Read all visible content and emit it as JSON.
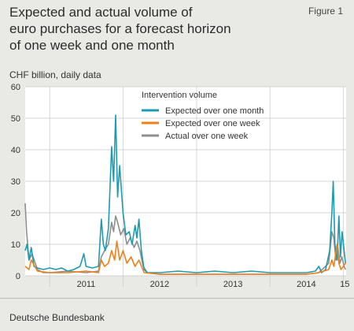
{
  "header": {
    "title_lines": [
      "Expected and actual volume of",
      "euro purchases for a forecast horizon",
      "of one week and one month"
    ],
    "figure_label": "Figure 1",
    "subtitle": "CHF billion, daily data"
  },
  "footer": {
    "source": "Deutsche Bundesbank"
  },
  "colors": {
    "expected_month": "#1f9bb0",
    "expected_week": "#f07f1a",
    "actual_week": "#8f8f8f",
    "panel_bg": "#ffffff",
    "page_bg": "#e9e9e5"
  },
  "chart_data": {
    "type": "line",
    "title": "Expected and actual volume of euro purchases for a forecast horizon of one week and one month",
    "ylabel": "CHF billion, daily data",
    "ylim": [
      0,
      60
    ],
    "yticks": [
      0,
      10,
      20,
      30,
      40,
      50,
      60
    ],
    "xlim": [
      "2010-09-01",
      "2015-01-15"
    ],
    "year_boundaries": [
      "2011-01-01",
      "2012-01-01",
      "2013-01-01",
      "2014-01-01",
      "2015-01-01"
    ],
    "xtick_labels": [
      {
        "label": "2011",
        "at": "2011-07-01"
      },
      {
        "label": "2012",
        "at": "2012-07-01"
      },
      {
        "label": "2013",
        "at": "2013-07-01"
      },
      {
        "label": "2014",
        "at": "2014-07-01"
      },
      {
        "label": "15",
        "at": "2015-01-08"
      }
    ],
    "grid": true,
    "legend_title": "Intervention volume",
    "legend_position": "top-center",
    "series": [
      {
        "name": "Expected over one month",
        "color": "#1f9bb0",
        "points": [
          [
            "2010-09-01",
            8
          ],
          [
            "2010-09-10",
            10
          ],
          [
            "2010-09-20",
            5
          ],
          [
            "2010-10-01",
            9
          ],
          [
            "2010-10-15",
            3
          ],
          [
            "2010-11-01",
            2.5
          ],
          [
            "2010-12-01",
            2
          ],
          [
            "2011-01-01",
            2.5
          ],
          [
            "2011-02-01",
            2
          ],
          [
            "2011-03-01",
            2.5
          ],
          [
            "2011-04-01",
            1.5
          ],
          [
            "2011-05-01",
            2
          ],
          [
            "2011-06-01",
            3
          ],
          [
            "2011-06-20",
            7
          ],
          [
            "2011-07-01",
            3
          ],
          [
            "2011-08-01",
            2.5
          ],
          [
            "2011-09-01",
            3
          ],
          [
            "2011-09-15",
            18
          ],
          [
            "2011-09-25",
            10
          ],
          [
            "2011-10-05",
            8
          ],
          [
            "2011-10-20",
            15
          ],
          [
            "2011-11-05",
            41
          ],
          [
            "2011-11-15",
            30
          ],
          [
            "2011-11-25",
            51
          ],
          [
            "2011-12-05",
            25
          ],
          [
            "2011-12-15",
            35
          ],
          [
            "2012-01-01",
            20
          ],
          [
            "2012-01-15",
            13
          ],
          [
            "2012-02-01",
            14
          ],
          [
            "2012-02-15",
            10
          ],
          [
            "2012-03-01",
            16
          ],
          [
            "2012-03-10",
            12
          ],
          [
            "2012-03-20",
            18
          ],
          [
            "2012-04-01",
            8
          ],
          [
            "2012-04-15",
            2
          ],
          [
            "2012-05-01",
            1
          ],
          [
            "2012-07-01",
            1
          ],
          [
            "2012-10-01",
            1.5
          ],
          [
            "2013-01-01",
            1
          ],
          [
            "2013-04-01",
            1.5
          ],
          [
            "2013-07-01",
            1
          ],
          [
            "2013-10-01",
            1.5
          ],
          [
            "2014-01-01",
            1
          ],
          [
            "2014-04-01",
            1
          ],
          [
            "2014-07-01",
            1
          ],
          [
            "2014-08-15",
            1.5
          ],
          [
            "2014-09-01",
            3
          ],
          [
            "2014-09-15",
            1
          ],
          [
            "2014-10-05",
            2
          ],
          [
            "2014-10-25",
            8
          ],
          [
            "2014-11-05",
            20
          ],
          [
            "2014-11-12",
            30
          ],
          [
            "2014-11-20",
            10
          ],
          [
            "2014-12-01",
            5
          ],
          [
            "2014-12-10",
            19
          ],
          [
            "2014-12-18",
            6
          ],
          [
            "2014-12-26",
            14
          ],
          [
            "2015-01-05",
            8
          ],
          [
            "2015-01-12",
            4
          ]
        ]
      },
      {
        "name": "Expected over one week",
        "color": "#f07f1a",
        "points": [
          [
            "2010-09-01",
            3
          ],
          [
            "2010-09-20",
            2
          ],
          [
            "2010-10-01",
            5
          ],
          [
            "2010-11-01",
            1.5
          ],
          [
            "2011-01-01",
            1
          ],
          [
            "2011-04-01",
            1
          ],
          [
            "2011-07-01",
            1.5
          ],
          [
            "2011-09-01",
            1
          ],
          [
            "2011-09-15",
            5
          ],
          [
            "2011-10-01",
            3
          ],
          [
            "2011-10-20",
            4
          ],
          [
            "2011-11-05",
            8
          ],
          [
            "2011-11-20",
            5
          ],
          [
            "2011-12-01",
            11
          ],
          [
            "2011-12-15",
            5
          ],
          [
            "2012-01-01",
            8
          ],
          [
            "2012-01-20",
            4
          ],
          [
            "2012-02-10",
            6
          ],
          [
            "2012-03-01",
            3
          ],
          [
            "2012-03-20",
            5
          ],
          [
            "2012-04-15",
            1
          ],
          [
            "2012-07-01",
            0.5
          ],
          [
            "2013-01-01",
            0.5
          ],
          [
            "2013-07-01",
            0.5
          ],
          [
            "2014-01-01",
            0.5
          ],
          [
            "2014-07-01",
            0.5
          ],
          [
            "2014-09-01",
            1
          ],
          [
            "2014-10-20",
            2
          ],
          [
            "2014-11-05",
            5
          ],
          [
            "2014-11-15",
            3
          ],
          [
            "2014-12-01",
            10
          ],
          [
            "2014-12-10",
            4
          ],
          [
            "2014-12-20",
            2
          ],
          [
            "2015-01-01",
            3
          ],
          [
            "2015-01-12",
            4
          ]
        ]
      },
      {
        "name": "Actual over one week",
        "color": "#8f8f8f",
        "points": [
          [
            "2010-09-01",
            23
          ],
          [
            "2010-09-08",
            14
          ],
          [
            "2010-09-20",
            5
          ],
          [
            "2010-10-05",
            7
          ],
          [
            "2010-11-01",
            2
          ],
          [
            "2010-12-01",
            1
          ],
          [
            "2011-01-01",
            1
          ],
          [
            "2011-04-01",
            1.5
          ],
          [
            "2011-07-01",
            1
          ],
          [
            "2011-09-01",
            1.5
          ],
          [
            "2011-09-15",
            6
          ],
          [
            "2011-10-01",
            8
          ],
          [
            "2011-10-20",
            10
          ],
          [
            "2011-11-05",
            17
          ],
          [
            "2011-11-15",
            14
          ],
          [
            "2011-11-25",
            19
          ],
          [
            "2011-12-05",
            17
          ],
          [
            "2011-12-20",
            13
          ],
          [
            "2012-01-05",
            15
          ],
          [
            "2012-01-20",
            10
          ],
          [
            "2012-02-05",
            12
          ],
          [
            "2012-02-25",
            9
          ],
          [
            "2012-03-10",
            11
          ],
          [
            "2012-03-25",
            8
          ],
          [
            "2012-04-10",
            3
          ],
          [
            "2012-05-01",
            1
          ],
          [
            "2012-07-01",
            0.5
          ],
          [
            "2013-01-01",
            0.5
          ],
          [
            "2013-07-01",
            0.5
          ],
          [
            "2014-01-01",
            0.5
          ],
          [
            "2014-07-01",
            0.5
          ],
          [
            "2014-09-01",
            1
          ],
          [
            "2014-10-20",
            4
          ],
          [
            "2014-11-05",
            14
          ],
          [
            "2014-11-15",
            12
          ],
          [
            "2014-11-25",
            5
          ],
          [
            "2014-12-05",
            9
          ],
          [
            "2014-12-15",
            4
          ],
          [
            "2014-12-25",
            6
          ],
          [
            "2015-01-05",
            3
          ],
          [
            "2015-01-12",
            2
          ]
        ]
      }
    ]
  }
}
